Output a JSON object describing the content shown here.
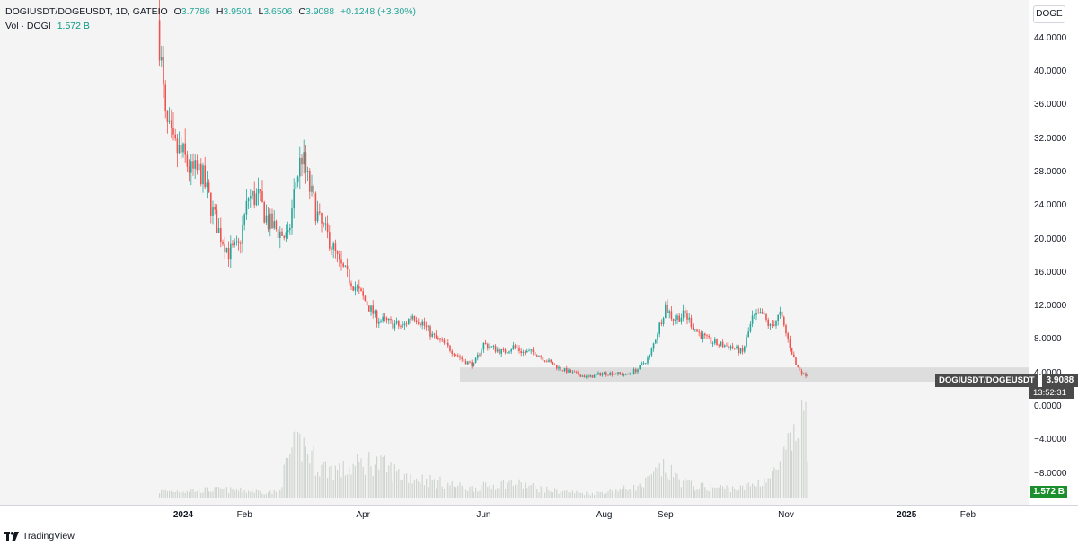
{
  "header": {
    "symbol_line": "DOGIUSDT/DOGEUSDT, 1D, GATEIO",
    "open_label": "O",
    "open": "3.7786",
    "high_label": "H",
    "high": "3.9501",
    "low_label": "L",
    "low": "3.6506",
    "close_label": "C",
    "close": "3.9088",
    "change": "+0.1248 (+3.30%)",
    "vol_label": "Vol · DOGI",
    "vol_value": "1.572 B"
  },
  "symbol_badge": "DOGE",
  "price_tag": {
    "symbol": "DOGIUSDT/DOGEUSDT",
    "price": "3.9088",
    "countdown": "13:52:31"
  },
  "volume_tag": "1.572 B",
  "footer": {
    "brand": "TradingView"
  },
  "colors": {
    "up": "#26a69a",
    "down": "#ef5350",
    "support_zone": "#d6d6d6",
    "volume": "#cfd4d0"
  },
  "chart_data": {
    "type": "candlestick",
    "x_tick_labels": [
      "2024",
      "Feb",
      "Apr",
      "Jun",
      "Aug",
      "Sep",
      "Nov",
      "2025",
      "Feb"
    ],
    "x_tick_dates": [
      "2024-01-01",
      "2024-02-01",
      "2024-04-01",
      "2024-06-01",
      "2024-08-01",
      "2024-09-01",
      "2024-11-01",
      "2025-01-01",
      "2025-02-01"
    ],
    "y_tick_labels": [
      "44.0000",
      "40.0000",
      "36.0000",
      "32.0000",
      "28.0000",
      "24.0000",
      "20.0000",
      "16.0000",
      "12.0000",
      "8.0000",
      "4.0000",
      "0.0000",
      "−4.0000",
      "−8.0000"
    ],
    "y_ticks": [
      44,
      40,
      36,
      32,
      28,
      24,
      20,
      16,
      12,
      8,
      4,
      0,
      -4,
      -8
    ],
    "ylim": [
      -11.7,
      48.6
    ],
    "support_zone": [
      3.0,
      4.7
    ],
    "last_price": 3.9088,
    "close_path": [
      [
        "2023-12-20",
        44
      ],
      [
        "2023-12-23",
        34
      ],
      [
        "2023-12-27",
        31
      ],
      [
        "2024-01-01",
        30
      ],
      [
        "2024-01-05",
        28
      ],
      [
        "2024-01-10",
        28
      ],
      [
        "2024-01-15",
        24
      ],
      [
        "2024-01-19",
        21
      ],
      [
        "2024-01-24",
        18.5
      ],
      [
        "2024-01-29",
        19
      ],
      [
        "2024-02-03",
        25
      ],
      [
        "2024-02-08",
        25
      ],
      [
        "2024-02-13",
        22
      ],
      [
        "2024-02-18",
        21
      ],
      [
        "2024-02-23",
        20
      ],
      [
        "2024-02-27",
        27
      ],
      [
        "2024-03-01",
        30
      ],
      [
        "2024-03-05",
        26
      ],
      [
        "2024-03-10",
        22
      ],
      [
        "2024-03-15",
        20
      ],
      [
        "2024-03-20",
        17
      ],
      [
        "2024-03-26",
        15
      ],
      [
        "2024-04-01",
        13
      ],
      [
        "2024-04-08",
        10.5
      ],
      [
        "2024-04-15",
        10
      ],
      [
        "2024-04-21",
        9.5
      ],
      [
        "2024-04-26",
        11
      ],
      [
        "2024-05-01",
        10
      ],
      [
        "2024-05-06",
        8.5
      ],
      [
        "2024-05-12",
        7.5
      ],
      [
        "2024-05-17",
        6.5
      ],
      [
        "2024-05-22",
        5.5
      ],
      [
        "2024-05-27",
        5
      ],
      [
        "2024-06-01",
        7.5
      ],
      [
        "2024-06-06",
        7
      ],
      [
        "2024-06-11",
        6.5
      ],
      [
        "2024-06-16",
        7.2
      ],
      [
        "2024-06-21",
        6.5
      ],
      [
        "2024-06-27",
        6.5
      ],
      [
        "2024-07-03",
        5.5
      ],
      [
        "2024-07-10",
        4.5
      ],
      [
        "2024-07-17",
        4
      ],
      [
        "2024-07-24",
        3.5
      ],
      [
        "2024-07-31",
        4
      ],
      [
        "2024-08-07",
        4
      ],
      [
        "2024-08-12",
        3.8
      ],
      [
        "2024-08-18",
        4.5
      ],
      [
        "2024-08-24",
        6
      ],
      [
        "2024-08-28",
        9
      ],
      [
        "2024-09-01",
        12
      ],
      [
        "2024-09-05",
        10.5
      ],
      [
        "2024-09-11",
        11
      ],
      [
        "2024-09-17",
        9
      ],
      [
        "2024-09-22",
        8
      ],
      [
        "2024-09-27",
        7.5
      ],
      [
        "2024-10-04",
        7.2
      ],
      [
        "2024-10-10",
        6.5
      ],
      [
        "2024-10-15",
        10.5
      ],
      [
        "2024-10-20",
        11
      ],
      [
        "2024-10-24",
        9.5
      ],
      [
        "2024-10-29",
        11
      ],
      [
        "2024-11-02",
        8
      ],
      [
        "2024-11-06",
        5
      ],
      [
        "2024-11-10",
        3.8
      ],
      [
        "2024-11-12",
        3.9088
      ]
    ],
    "volume_path": [
      [
        "2023-12-20",
        0.07
      ],
      [
        "2024-01-20",
        0.09
      ],
      [
        "2024-02-18",
        0.06
      ],
      [
        "2024-02-24",
        0.45
      ],
      [
        "2024-03-01",
        0.55
      ],
      [
        "2024-03-10",
        0.32
      ],
      [
        "2024-03-22",
        0.28
      ],
      [
        "2024-04-05",
        0.38
      ],
      [
        "2024-04-20",
        0.24
      ],
      [
        "2024-05-05",
        0.18
      ],
      [
        "2024-05-25",
        0.1
      ],
      [
        "2024-06-15",
        0.16
      ],
      [
        "2024-07-05",
        0.08
      ],
      [
        "2024-07-25",
        0.05
      ],
      [
        "2024-08-20",
        0.12
      ],
      [
        "2024-08-30",
        0.3
      ],
      [
        "2024-09-15",
        0.12
      ],
      [
        "2024-10-10",
        0.1
      ],
      [
        "2024-10-25",
        0.22
      ],
      [
        "2024-11-07",
        0.65
      ],
      [
        "2024-11-10",
        1.0
      ],
      [
        "2024-11-12",
        0.4
      ]
    ]
  }
}
